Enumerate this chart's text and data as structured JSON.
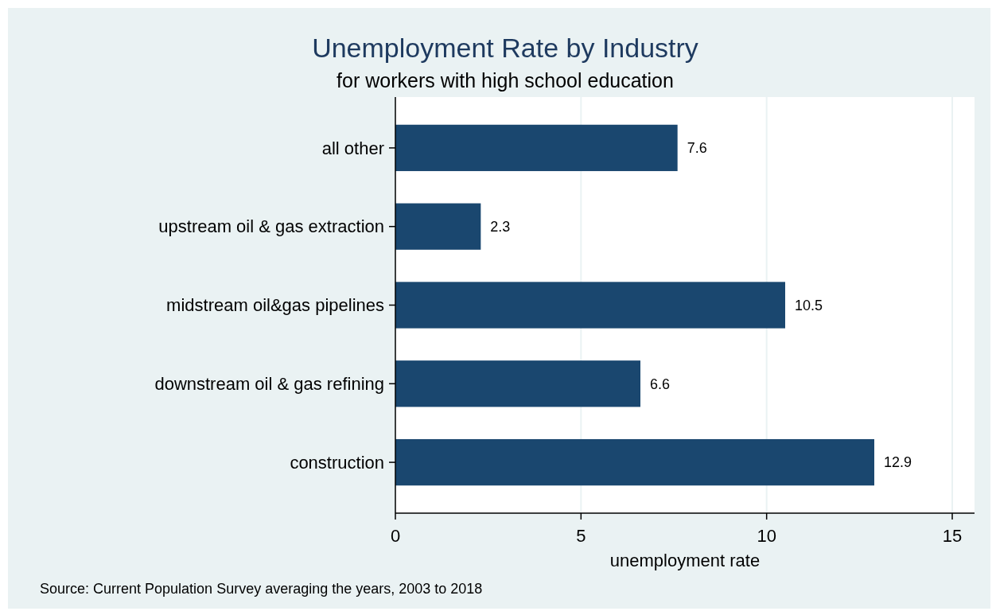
{
  "chart_data": {
    "type": "bar",
    "orientation": "horizontal",
    "title": "Unemployment Rate by Industry",
    "subtitle": "for workers with high school education",
    "xlabel": "unemployment rate",
    "categories": [
      "all other",
      "upstream oil & gas extraction",
      "midstream oil&gas pipelines",
      "downstream oil & gas refining",
      "construction"
    ],
    "values": [
      7.6,
      2.3,
      10.5,
      6.6,
      12.9
    ],
    "color": "#1a476f",
    "data_labels": true,
    "xlim": [
      0,
      15.6
    ],
    "xticks": [
      0,
      5,
      10,
      15
    ],
    "grid": "x",
    "annotations": [
      "Source: Current Population Survey averaging the years, 2003 to 2018"
    ]
  }
}
